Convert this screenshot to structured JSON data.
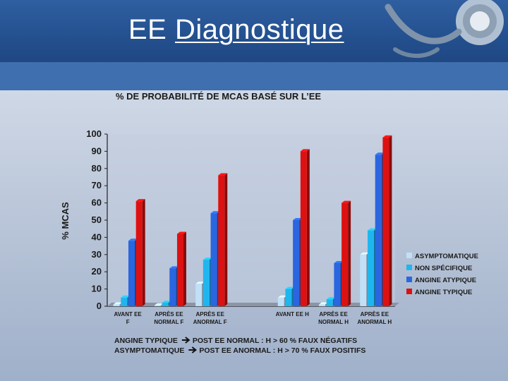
{
  "slide": {
    "title_prefix": "EE ",
    "title_main": "Diagnostique"
  },
  "chart_data": {
    "type": "bar",
    "title": "% DE PROBABILITÉ DE MCAS BASÉ SUR L’EE",
    "ylabel": "% MCAS",
    "xlabel": "",
    "ylim": [
      0,
      100
    ],
    "yticks": [
      0,
      10,
      20,
      30,
      40,
      50,
      60,
      70,
      80,
      90,
      100
    ],
    "categories": [
      [
        "AVANT EE",
        "F"
      ],
      [
        "APRÈS EE",
        "NORMAL F"
      ],
      [
        "APRÈS EE",
        "ANORMAL F"
      ],
      [
        "",
        ""
      ],
      [
        "AVANT EE H",
        ""
      ],
      [
        "APRÈS EE",
        "NORMAL H"
      ],
      [
        "APRÈS EE",
        "ANORMAL H"
      ]
    ],
    "series": [
      {
        "name": "ASYMPTOMATIQUE",
        "color": "#bfe0f7",
        "values": [
          1,
          0.5,
          13,
          null,
          5,
          1,
          30
        ]
      },
      {
        "name": "NON SPÉCIFIQUE",
        "color": "#1fb6f0",
        "values": [
          5,
          2,
          27,
          null,
          10,
          4,
          44
        ]
      },
      {
        "name": "ANGINE ATYPIQUE",
        "color": "#2a66e0",
        "values": [
          38,
          22,
          54,
          null,
          50,
          25,
          88
        ]
      },
      {
        "name": "ANGINE TYPIQUE",
        "color": "#dd1111",
        "values": [
          61,
          42,
          76,
          null,
          90,
          60,
          98
        ]
      }
    ],
    "legend_position": "right",
    "grid": false,
    "notes": [
      {
        "a": "ANGINE TYPIQUE",
        "b": "POST EE NORMAL : H > 60 % FAUX NÉGATIFS"
      },
      {
        "a": "ASYMPTOMATIQUE",
        "b": "POST EE ANORMAL : H > 70 % FAUX POSITIFS"
      }
    ]
  }
}
